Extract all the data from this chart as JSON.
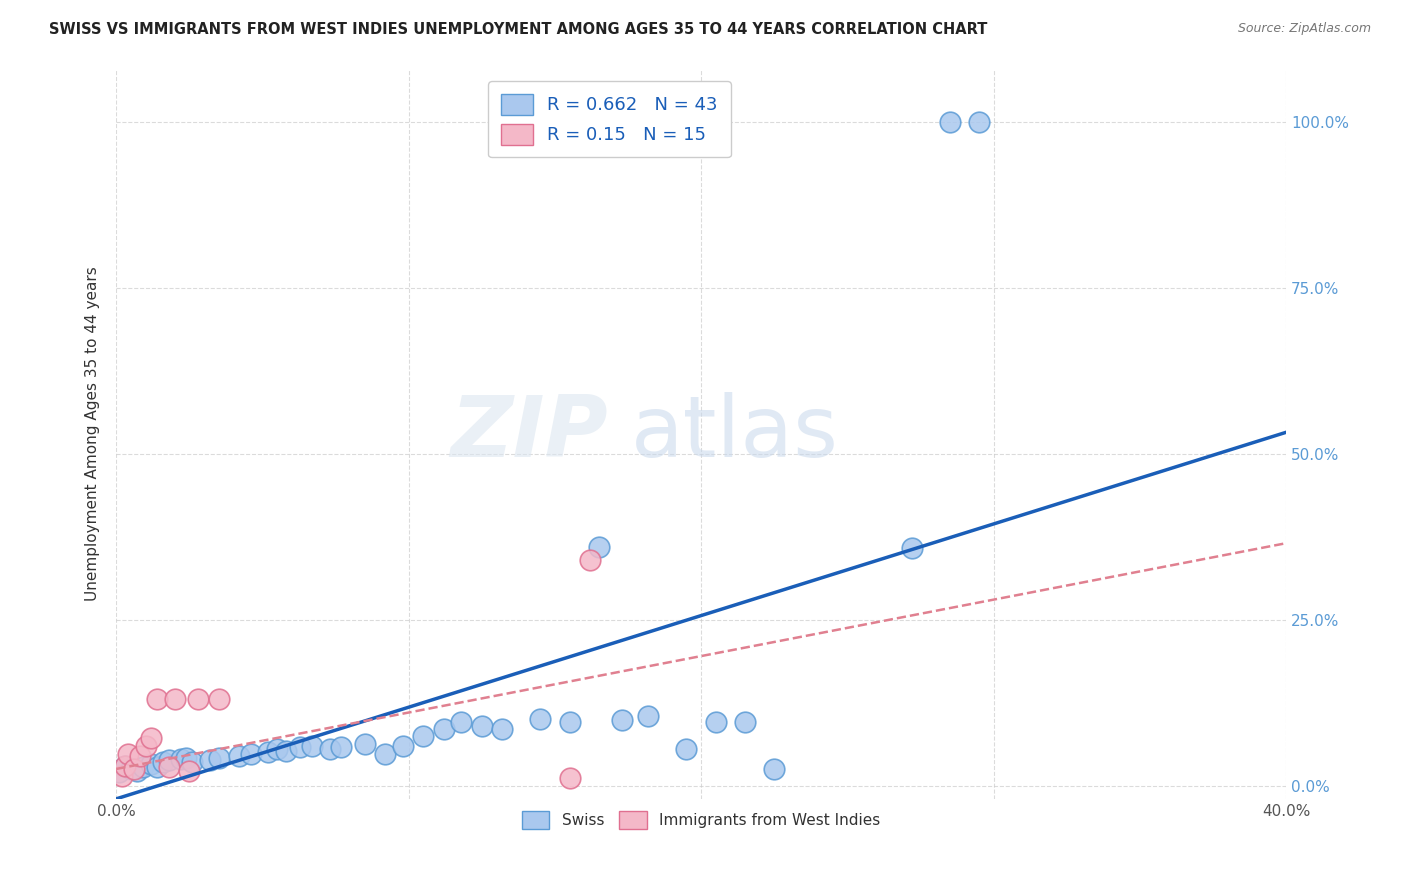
{
  "title": "SWISS VS IMMIGRANTS FROM WEST INDIES UNEMPLOYMENT AMONG AGES 35 TO 44 YEARS CORRELATION CHART",
  "source": "Source: ZipAtlas.com",
  "ylabel": "Unemployment Among Ages 35 to 44 years",
  "xlim": [
    0.0,
    0.4
  ],
  "ylim": [
    -0.02,
    1.08
  ],
  "xticks": [
    0.0,
    0.1,
    0.2,
    0.3,
    0.4
  ],
  "xticklabels": [
    "0.0%",
    "",
    "",
    "",
    "40.0%"
  ],
  "yticks": [
    0.0,
    0.25,
    0.5,
    0.75,
    1.0
  ],
  "yticklabels_right": [
    "0.0%",
    "25.0%",
    "50.0%",
    "75.0%",
    "100.0%"
  ],
  "swiss_color": "#aac8ee",
  "swiss_edge_color": "#5b9bd5",
  "immigrant_color": "#f4b8c8",
  "immigrant_edge_color": "#e07090",
  "regression_blue_color": "#1a5eb8",
  "regression_pink_color": "#e08090",
  "swiss_R": 0.662,
  "swiss_N": 43,
  "immigrant_R": 0.15,
  "immigrant_N": 15,
  "watermark_zip": "ZIP",
  "watermark_atlas": "atlas",
  "background_color": "#ffffff",
  "grid_color": "#cccccc",
  "tick_label_color": "#5b9bd5",
  "swiss_x": [
    0.001,
    0.003,
    0.005,
    0.007,
    0.009,
    0.012,
    0.014,
    0.016,
    0.018,
    0.022,
    0.024,
    0.026,
    0.032,
    0.035,
    0.042,
    0.046,
    0.052,
    0.055,
    0.058,
    0.063,
    0.067,
    0.073,
    0.077,
    0.085,
    0.092,
    0.098,
    0.105,
    0.112,
    0.118,
    0.125,
    0.132,
    0.145,
    0.155,
    0.165,
    0.173,
    0.182,
    0.195,
    0.205,
    0.215,
    0.225,
    0.272,
    0.285,
    0.295
  ],
  "swiss_y": [
    0.02,
    0.03,
    0.025,
    0.022,
    0.028,
    0.032,
    0.028,
    0.035,
    0.038,
    0.04,
    0.042,
    0.035,
    0.038,
    0.042,
    0.045,
    0.048,
    0.05,
    0.055,
    0.052,
    0.058,
    0.06,
    0.055,
    0.058,
    0.062,
    0.048,
    0.06,
    0.075,
    0.085,
    0.095,
    0.09,
    0.085,
    0.1,
    0.095,
    0.36,
    0.098,
    0.105,
    0.055,
    0.095,
    0.095,
    0.025,
    0.358,
    1.0,
    1.0
  ],
  "immigrant_x": [
    0.002,
    0.003,
    0.004,
    0.006,
    0.008,
    0.01,
    0.012,
    0.014,
    0.018,
    0.02,
    0.025,
    0.028,
    0.035,
    0.155,
    0.162
  ],
  "immigrant_y": [
    0.015,
    0.03,
    0.048,
    0.025,
    0.045,
    0.06,
    0.072,
    0.13,
    0.028,
    0.13,
    0.022,
    0.13,
    0.13,
    0.012,
    0.34
  ],
  "regression_swiss_m": 1.38,
  "regression_swiss_b": -0.02,
  "regression_imm_m": 0.85,
  "regression_imm_b": 0.025
}
